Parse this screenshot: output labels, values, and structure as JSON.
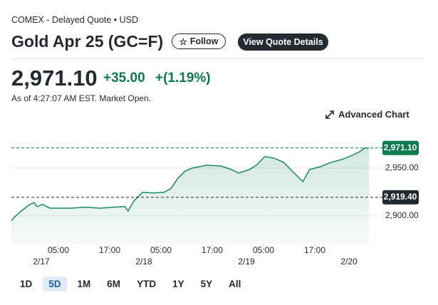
{
  "header": {
    "source": "COMEX - Delayed Quote • USD",
    "title": "Gold Apr 25 (GC=F)",
    "follow": "Follow",
    "details": "View Quote Details"
  },
  "quote": {
    "price": "2,971.10",
    "change": "+35.00",
    "percent": "+(1.19%)",
    "as_of": "As of 4:27:07 AM EST. Market Open."
  },
  "advanced": "Advanced Chart",
  "ranges": [
    "1D",
    "5D",
    "1M",
    "6M",
    "YTD",
    "1Y",
    "5Y",
    "All"
  ],
  "active_range": "5D",
  "chart_data": {
    "type": "area",
    "color": "#1a8a5a",
    "grid": true,
    "x": [
      -6,
      -5.3,
      -3.7,
      -2,
      -0.7,
      0,
      1.3,
      3,
      4.7,
      8,
      11.3,
      14.7,
      18,
      20.5,
      21.3,
      22.7,
      24.7,
      27.2,
      29.7,
      31.3,
      33,
      34.7,
      36.3,
      39.7,
      43,
      45.5,
      47.2,
      49.7,
      51.3,
      53.3,
      55.5,
      57.7,
      59.7,
      62.2,
      63.8,
      66.3,
      68.8,
      71.3,
      73.8,
      75.5,
      76.7,
      77.7
    ],
    "values": [
      2894.8,
      2898.5,
      2905,
      2911,
      2914,
      2909.7,
      2912,
      2908,
      2908,
      2908,
      2909,
      2908,
      2909,
      2909.7,
      2905,
      2915.7,
      2924.6,
      2923.9,
      2924.6,
      2928.4,
      2939.6,
      2947,
      2950,
      2953,
      2952.2,
      2948.5,
      2944.8,
      2948.5,
      2953,
      2962,
      2960.4,
      2956,
      2947,
      2935.8,
      2948.5,
      2951.5,
      2956,
      2959,
      2963.4,
      2967.2,
      2971,
      2971.1
    ],
    "xlim": [
      -6,
      80
    ],
    "ylim": [
      2870,
      2988
    ],
    "xticks": [
      {
        "value": 5,
        "label": "05:00"
      },
      {
        "value": 17,
        "label": "17:00"
      },
      {
        "value": 29,
        "label": "05:00"
      },
      {
        "value": 41,
        "label": "17:00"
      },
      {
        "value": 53,
        "label": "05:00"
      },
      {
        "value": 65,
        "label": "17:00"
      }
    ],
    "date_ticks": [
      {
        "value": 0,
        "label": "2/17"
      },
      {
        "value": 24,
        "label": "2/18"
      },
      {
        "value": 48,
        "label": "2/19"
      },
      {
        "value": 72,
        "label": "2/20"
      }
    ],
    "yticks": [
      {
        "value": 2900,
        "label": "2,900.00"
      },
      {
        "value": 2950,
        "label": "2,950.00"
      }
    ],
    "reference_lines": [
      {
        "value": 2971.1,
        "label": "2,971.10",
        "color": "#0b7a4c"
      },
      {
        "value": 2919.4,
        "label": "2,919.40",
        "color": "#232a31"
      }
    ]
  }
}
